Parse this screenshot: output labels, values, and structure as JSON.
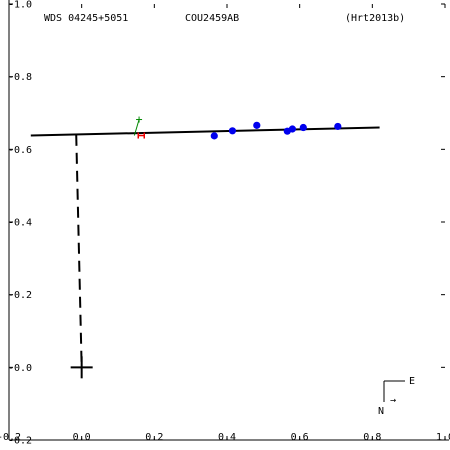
{
  "header": {
    "left": "WDS 04245+5051",
    "center": "COU2459AB",
    "right": "(Hrt2013b)"
  },
  "compass": {
    "east_label": "E",
    "north_label": "N",
    "arrow_glyph": "→"
  },
  "chart_data": {
    "type": "scatter",
    "title": "",
    "xlabel": "",
    "ylabel": "",
    "xlim": [
      -0.2,
      1.0
    ],
    "ylim": [
      -0.2,
      1.0
    ],
    "x_ticks": [
      -0.2,
      0.0,
      0.2,
      0.4,
      0.6,
      0.8,
      1.0
    ],
    "y_ticks": [
      -0.2,
      0.0,
      0.2,
      0.4,
      0.6,
      0.8,
      1.0
    ],
    "x_tick_labels": [
      "-0.2",
      "0.0",
      "0.2",
      "0.4",
      "0.6",
      "0.8",
      "1.0"
    ],
    "y_tick_labels": [
      "-0.2",
      "-0.0",
      "-0.2",
      "-0.4",
      "-0.6",
      "-0.8",
      "-1.0"
    ],
    "orbit_line": [
      [
        -0.14,
        0.638
      ],
      [
        0.82,
        0.66
      ]
    ],
    "node_line": [
      [
        -0.015,
        0.64
      ],
      [
        0.0,
        0.0
      ]
    ],
    "primary": [
      0.0,
      0.0
    ],
    "observations": [
      [
        0.365,
        0.637
      ],
      [
        0.415,
        0.651
      ],
      [
        0.482,
        0.666
      ],
      [
        0.566,
        0.65
      ],
      [
        0.58,
        0.656
      ],
      [
        0.61,
        0.66
      ],
      [
        0.705,
        0.663
      ]
    ],
    "speckle_points": [
      [
        0.164,
        0.638
      ]
    ],
    "interferometric_points": [
      [
        0.158,
        0.682
      ]
    ],
    "colors": {
      "observation": "#0000ee",
      "speckle": "#ee0000",
      "interferometric": "#008800",
      "orbit": "#000000"
    }
  }
}
